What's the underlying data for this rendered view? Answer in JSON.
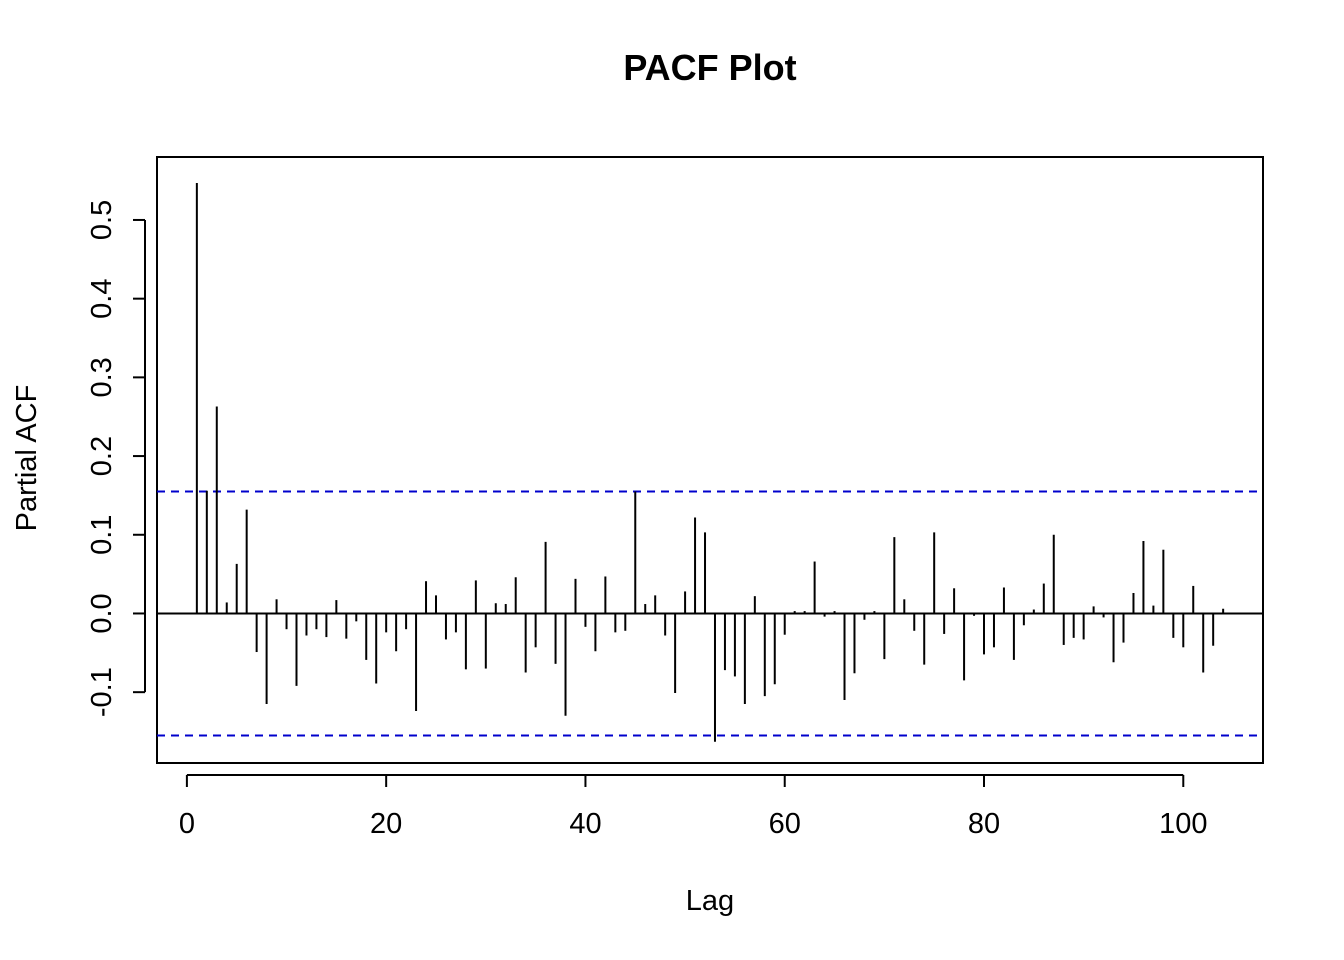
{
  "chart_data": {
    "type": "bar",
    "title": "PACF Plot",
    "xlabel": "Lag",
    "ylabel": "Partial ACF",
    "xlim": [
      -3,
      108
    ],
    "ylim": [
      -0.19,
      0.58
    ],
    "x_ticks": [
      0,
      20,
      40,
      60,
      80,
      100
    ],
    "x_tick_labels": [
      "0",
      "20",
      "40",
      "60",
      "80",
      "100"
    ],
    "y_ticks": [
      -0.1,
      0.0,
      0.1,
      0.2,
      0.3,
      0.4,
      0.5
    ],
    "y_tick_labels": [
      "-0.1",
      "0.0",
      "0.1",
      "0.2",
      "0.3",
      "0.4",
      "0.5"
    ],
    "confidence_bound": 0.155,
    "bar_color": "#000000",
    "ci_color": "#0000CC",
    "grid": false,
    "x": [
      1,
      2,
      3,
      4,
      5,
      6,
      7,
      8,
      9,
      10,
      11,
      12,
      13,
      14,
      15,
      16,
      17,
      18,
      19,
      20,
      21,
      22,
      23,
      24,
      25,
      26,
      27,
      28,
      29,
      30,
      31,
      32,
      33,
      34,
      35,
      36,
      37,
      38,
      39,
      40,
      41,
      42,
      43,
      44,
      45,
      46,
      47,
      48,
      49,
      50,
      51,
      52,
      53,
      54,
      55,
      56,
      57,
      58,
      59,
      60,
      61,
      62,
      63,
      64,
      65,
      66,
      67,
      68,
      69,
      70,
      71,
      72,
      73,
      74,
      75,
      76,
      77,
      78,
      79,
      80,
      81,
      82,
      83,
      84,
      85,
      86,
      87,
      88,
      89,
      90,
      91,
      92,
      93,
      94,
      95,
      96,
      97,
      98,
      99,
      100,
      101,
      102,
      103,
      104
    ],
    "values": [
      0.547,
      0.156,
      0.263,
      0.014,
      0.063,
      0.132,
      -0.049,
      -0.115,
      0.018,
      -0.02,
      -0.092,
      -0.028,
      -0.02,
      -0.03,
      0.017,
      -0.032,
      -0.01,
      -0.059,
      -0.089,
      -0.024,
      -0.048,
      -0.02,
      -0.124,
      0.041,
      0.023,
      -0.033,
      -0.024,
      -0.071,
      0.042,
      -0.07,
      0.013,
      0.012,
      0.046,
      -0.075,
      -0.043,
      0.091,
      -0.064,
      -0.13,
      0.044,
      -0.017,
      -0.048,
      0.047,
      -0.024,
      -0.022,
      0.155,
      0.012,
      0.023,
      -0.028,
      -0.101,
      0.028,
      0.122,
      0.103,
      -0.163,
      -0.072,
      -0.08,
      -0.115,
      0.022,
      -0.105,
      -0.09,
      -0.027,
      0.003,
      0.003,
      0.066,
      -0.004,
      0.003,
      -0.11,
      -0.076,
      -0.008,
      0.003,
      -0.058,
      0.097,
      0.018,
      -0.022,
      -0.065,
      0.103,
      -0.026,
      0.032,
      -0.085,
      -0.003,
      -0.052,
      -0.043,
      0.033,
      -0.059,
      -0.015,
      0.005,
      0.038,
      0.1,
      -0.04,
      -0.031,
      -0.033,
      0.009,
      -0.005,
      -0.062,
      -0.037,
      0.026,
      0.092,
      0.01,
      0.081,
      -0.031,
      -0.043,
      0.035,
      -0.075,
      -0.041,
      0.006
    ]
  }
}
